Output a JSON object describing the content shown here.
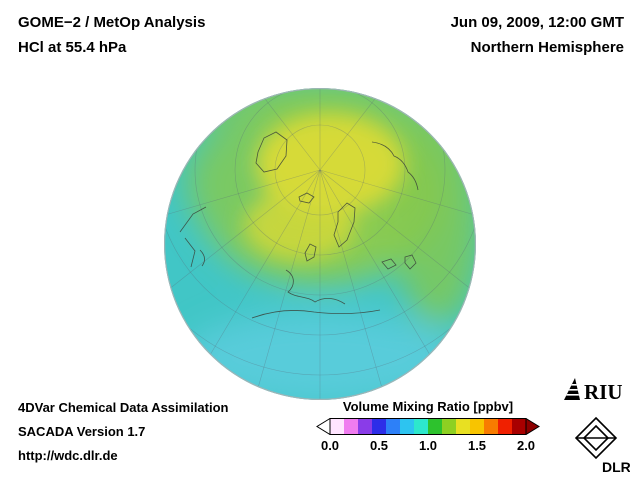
{
  "header": {
    "analysis_title": "GOME−2 / MetOp Analysis",
    "level_title": "HCl at 55.4 hPa",
    "datetime": "Jun 09, 2009, 12:00 GMT",
    "hemisphere": "Northern Hemisphere"
  },
  "globe": {
    "projection": "orthographic",
    "region": "Northern Hemisphere",
    "field": "HCl volume mixing ratio",
    "sea_color": "#41c6c6",
    "data_colors": {
      "core_yellow": "#d6da38",
      "mid_green": "#8ccb4e",
      "right_arc_green": "#84c84e",
      "left_green": "#74c86a",
      "bottom_light_blue": "#62cfe2",
      "top_green": "#7cc85a"
    }
  },
  "colorbar": {
    "title": "Volume Mixing Ratio [ppbv]",
    "ticks": [
      "0.0",
      "0.5",
      "1.0",
      "1.5",
      "2.0"
    ],
    "min": 0.0,
    "max": 2.0,
    "unit": "ppbv",
    "under_color": "#ffffff",
    "over_color": "#8c0000",
    "colors": [
      "#ffe4ff",
      "#f07cf0",
      "#8a3ce8",
      "#2d2de8",
      "#2d80f8",
      "#2dc4f0",
      "#2de8cc",
      "#2dc22d",
      "#8ed022",
      "#e8e022",
      "#f8c400",
      "#f87c00",
      "#f02000",
      "#a80000"
    ]
  },
  "footer": {
    "line1": "4DVar Chemical Data Assimilation",
    "line2": "SACADA Version 1.7",
    "line3": "http://wdc.dlr.de"
  },
  "logos": {
    "riu_label": "RIU",
    "dlr_label": "DLR"
  }
}
